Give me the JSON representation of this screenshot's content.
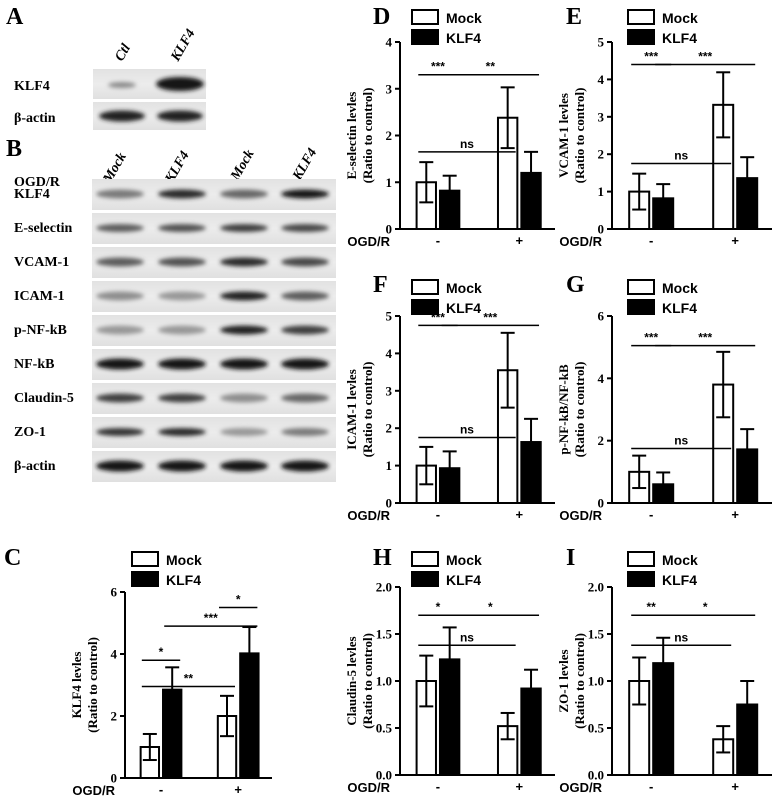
{
  "figure": {
    "panel_A": {
      "letter": "A",
      "lanes": [
        "Ctl",
        "KLF4"
      ],
      "rows": [
        "KLF4",
        "β-actin"
      ]
    },
    "panel_B": {
      "letter": "B",
      "lane_conditions": [
        {
          "sign": "-",
          "treatment": "Mock"
        },
        {
          "sign": "-",
          "treatment": "KLF4"
        },
        {
          "sign": "+",
          "treatment": "Mock"
        },
        {
          "sign": "+",
          "treatment": "KLF4"
        }
      ],
      "condition_label": "OGD/R",
      "rows": [
        "KLF4",
        "E-selectin",
        "VCAM-1",
        "ICAM-1",
        "p-NF-kB",
        "NF-kB",
        "Claudin-5",
        "ZO-1",
        "β-actin"
      ]
    },
    "legend": {
      "mock": "Mock",
      "klf4": "KLF4"
    },
    "x_categories": [
      "-",
      "+"
    ],
    "x_label": "OGD/R",
    "colors": {
      "mock": "#ffffff",
      "klf4": "#000000"
    }
  },
  "chart_data": [
    {
      "id": "C",
      "letter": "C",
      "type": "bar",
      "ylabel_lines": [
        "KLF4 levles",
        "(Ratio to control)"
      ],
      "ylim": [
        0,
        6
      ],
      "yticks": [
        "0",
        "2",
        "4",
        "6"
      ],
      "series": [
        {
          "name": "Mock",
          "values": [
            1.0,
            2.0
          ],
          "errors": [
            0.42,
            0.65
          ]
        },
        {
          "name": "KLF4",
          "values": [
            2.85,
            4.02
          ],
          "errors": [
            0.72,
            0.85
          ]
        }
      ],
      "annotations": [
        {
          "text": "**",
          "from": [
            0,
            0
          ],
          "to": [
            0,
            1
          ],
          "level": 2.95
        },
        {
          "text": "*",
          "from": [
            0,
            0
          ],
          "to": [
            1,
            0
          ],
          "level": 3.8
        },
        {
          "text": "***",
          "from": [
            1,
            0
          ],
          "to": [
            1,
            1
          ],
          "level": 4.9
        },
        {
          "text": "*",
          "from": [
            0,
            1
          ],
          "to": [
            1,
            1
          ],
          "level": 5.5
        }
      ]
    },
    {
      "id": "D",
      "letter": "D",
      "type": "bar",
      "ylabel_lines": [
        "E-selectin levles",
        "(Ratio to control)"
      ],
      "ylim": [
        0,
        4
      ],
      "yticks": [
        "0",
        "1",
        "2",
        "3",
        "4"
      ],
      "series": [
        {
          "name": "Mock",
          "values": [
            1.0,
            2.38
          ],
          "errors": [
            0.43,
            0.65
          ]
        },
        {
          "name": "KLF4",
          "values": [
            0.82,
            1.2
          ],
          "errors": [
            0.32,
            0.45
          ]
        }
      ],
      "annotations": [
        {
          "text": "ns",
          "from": [
            0,
            0
          ],
          "to": [
            0,
            1
          ],
          "level": 1.65
        },
        {
          "text": "***",
          "from": [
            0,
            0
          ],
          "to": [
            1,
            0
          ],
          "level": 3.3
        },
        {
          "text": "**",
          "from": [
            1,
            0
          ],
          "to": [
            1,
            1
          ],
          "level": 3.3
        }
      ]
    },
    {
      "id": "E",
      "letter": "E",
      "type": "bar",
      "ylabel_lines": [
        "VCAM-1 levles",
        "(Ratio to control)"
      ],
      "ylim": [
        0,
        5
      ],
      "yticks": [
        "0",
        "1",
        "2",
        "3",
        "4",
        "5"
      ],
      "series": [
        {
          "name": "Mock",
          "values": [
            1.0,
            3.32
          ],
          "errors": [
            0.48,
            0.87
          ]
        },
        {
          "name": "KLF4",
          "values": [
            0.82,
            1.36
          ],
          "errors": [
            0.38,
            0.56
          ]
        }
      ],
      "annotations": [
        {
          "text": "ns",
          "from": [
            0,
            0
          ],
          "to": [
            0,
            1
          ],
          "level": 1.75
        },
        {
          "text": "***",
          "from": [
            0,
            0
          ],
          "to": [
            1,
            0
          ],
          "level": 4.4
        },
        {
          "text": "***",
          "from": [
            1,
            0
          ],
          "to": [
            1,
            1
          ],
          "level": 4.4
        }
      ]
    },
    {
      "id": "F",
      "letter": "F",
      "type": "bar",
      "ylabel_lines": [
        "ICAM-1 levles",
        "(Ratio to control)"
      ],
      "ylim": [
        0,
        5
      ],
      "yticks": [
        "0",
        "1",
        "2",
        "3",
        "4",
        "5"
      ],
      "series": [
        {
          "name": "Mock",
          "values": [
            1.0,
            3.55
          ],
          "errors": [
            0.5,
            1.0
          ]
        },
        {
          "name": "KLF4",
          "values": [
            0.93,
            1.63
          ],
          "errors": [
            0.45,
            0.62
          ]
        }
      ],
      "annotations": [
        {
          "text": "ns",
          "from": [
            0,
            0
          ],
          "to": [
            0,
            1
          ],
          "level": 1.75
        },
        {
          "text": "***",
          "from": [
            0,
            0
          ],
          "to": [
            1,
            0
          ],
          "level": 4.75
        },
        {
          "text": "***",
          "from": [
            1,
            0
          ],
          "to": [
            1,
            1
          ],
          "level": 4.75
        }
      ]
    },
    {
      "id": "G",
      "letter": "G",
      "type": "bar",
      "ylabel_lines": [
        "p-NF-kB/NF-kB",
        "(Ratio to control)"
      ],
      "ylim": [
        0,
        6
      ],
      "yticks": [
        "0",
        "2",
        "4",
        "6"
      ],
      "series": [
        {
          "name": "Mock",
          "values": [
            1.0,
            3.8
          ],
          "errors": [
            0.52,
            1.05
          ]
        },
        {
          "name": "KLF4",
          "values": [
            0.6,
            1.72
          ],
          "errors": [
            0.38,
            0.65
          ]
        }
      ],
      "annotations": [
        {
          "text": "ns",
          "from": [
            0,
            0
          ],
          "to": [
            0,
            1
          ],
          "level": 1.75
        },
        {
          "text": "***",
          "from": [
            0,
            0
          ],
          "to": [
            1,
            0
          ],
          "level": 5.05
        },
        {
          "text": "***",
          "from": [
            1,
            0
          ],
          "to": [
            1,
            1
          ],
          "level": 5.05
        }
      ]
    },
    {
      "id": "H",
      "letter": "H",
      "type": "bar",
      "ylabel_lines": [
        "Claudin-5 levles",
        "(Ratio to control)"
      ],
      "ylim": [
        0,
        2.0
      ],
      "yticks": [
        "0.0",
        "0.5",
        "1.0",
        "1.5",
        "2.0"
      ],
      "series": [
        {
          "name": "Mock",
          "values": [
            1.0,
            0.52
          ],
          "errors": [
            0.27,
            0.14
          ]
        },
        {
          "name": "KLF4",
          "values": [
            1.23,
            0.92
          ],
          "errors": [
            0.34,
            0.2
          ]
        }
      ],
      "annotations": [
        {
          "text": "ns",
          "from": [
            0,
            0
          ],
          "to": [
            0,
            1
          ],
          "level": 1.38
        },
        {
          "text": "*",
          "from": [
            0,
            0
          ],
          "to": [
            1,
            0
          ],
          "level": 1.7
        },
        {
          "text": "*",
          "from": [
            1,
            0
          ],
          "to": [
            1,
            1
          ],
          "level": 1.7
        }
      ]
    },
    {
      "id": "I",
      "letter": "I",
      "type": "bar",
      "ylabel_lines": [
        "ZO-1 levles",
        "(Ratio to control)"
      ],
      "ylim": [
        0,
        2.0
      ],
      "yticks": [
        "0.0",
        "0.5",
        "1.0",
        "1.5",
        "2.0"
      ],
      "series": [
        {
          "name": "Mock",
          "values": [
            1.0,
            0.38
          ],
          "errors": [
            0.25,
            0.14
          ]
        },
        {
          "name": "KLF4",
          "values": [
            1.19,
            0.75
          ],
          "errors": [
            0.27,
            0.25
          ]
        }
      ],
      "annotations": [
        {
          "text": "ns",
          "from": [
            0,
            0
          ],
          "to": [
            0,
            1
          ],
          "level": 1.38
        },
        {
          "text": "**",
          "from": [
            0,
            0
          ],
          "to": [
            1,
            0
          ],
          "level": 1.7
        },
        {
          "text": "*",
          "from": [
            1,
            0
          ],
          "to": [
            1,
            1
          ],
          "level": 1.7
        }
      ]
    }
  ]
}
